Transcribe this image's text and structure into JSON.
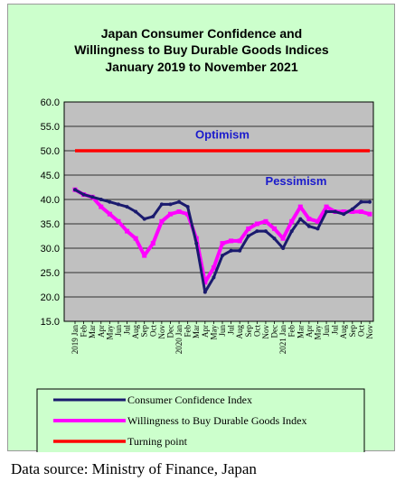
{
  "chart_data": {
    "type": "line",
    "title": [
      "Japan Consumer Confidence and",
      "Willingness to Buy Durable Goods Indices",
      "January 2019 to November 2021"
    ],
    "xlabel": "",
    "ylabel": "",
    "ylim": [
      15.0,
      60.0
    ],
    "y_ticks": [
      "60.0",
      "55.0",
      "50.0",
      "45.0",
      "40.0",
      "35.0",
      "30.0",
      "25.0",
      "20.0",
      "15.0"
    ],
    "grid": "horizontal",
    "legend_position": "bottom",
    "categories": [
      "2019 Jan",
      "Feb",
      "Mar",
      "Apr",
      "May",
      "Jun",
      "Jul",
      "Aug",
      "Sep",
      "Oct",
      "Nov",
      "Dec",
      "2020 Jan",
      "Feb",
      "Mar",
      "Apr",
      "May",
      "Jun",
      "Jul",
      "Aug",
      "Sep",
      "Oct",
      "Nov",
      "Dec",
      "2021 Jan",
      "Feb",
      "Mar",
      "Apr",
      "May",
      "Jun",
      "Jul",
      "Aug",
      "Sep",
      "Oct",
      "Nov"
    ],
    "series": [
      {
        "name": "Consumer Confidence Index",
        "color": "#1a1a6e",
        "values": [
          42.0,
          41.0,
          40.5,
          40.0,
          39.5,
          39.0,
          38.5,
          37.5,
          36.0,
          36.5,
          39.0,
          39.0,
          39.5,
          38.5,
          31.0,
          21.0,
          24.0,
          28.5,
          29.5,
          29.5,
          32.5,
          33.5,
          33.5,
          32.0,
          30.0,
          33.5,
          36.0,
          34.5,
          34.0,
          37.5,
          37.5,
          37.0,
          38.0,
          39.5,
          39.5
        ]
      },
      {
        "name": "Willingness to Buy Durable Goods Index",
        "color": "#ff00ff",
        "values": [
          42.0,
          41.0,
          40.5,
          38.5,
          37.0,
          35.5,
          33.5,
          32.0,
          28.5,
          31.0,
          35.5,
          37.0,
          37.5,
          37.0,
          32.0,
          23.0,
          26.0,
          31.0,
          31.5,
          31.5,
          34.0,
          35.0,
          35.5,
          34.0,
          32.0,
          35.5,
          38.5,
          36.0,
          35.5,
          38.5,
          37.5,
          37.5,
          37.5,
          37.5,
          37.0
        ]
      },
      {
        "name": "Turning point",
        "color": "#ff0000",
        "values": [
          50.0,
          50.0,
          50.0,
          50.0,
          50.0,
          50.0,
          50.0,
          50.0,
          50.0,
          50.0,
          50.0,
          50.0,
          50.0,
          50.0,
          50.0,
          50.0,
          50.0,
          50.0,
          50.0,
          50.0,
          50.0,
          50.0,
          50.0,
          50.0,
          50.0,
          50.0,
          50.0,
          50.0,
          50.0,
          50.0,
          50.0,
          50.0,
          50.0,
          50.0,
          50.0
        ]
      }
    ],
    "annotations": [
      {
        "text": "Optimism",
        "x_index": 17,
        "y": 52.5
      },
      {
        "text": "Pessimism",
        "x_index": 25.5,
        "y": 43.0
      }
    ]
  },
  "source_note": "Data source: Ministry of Finance, Japan",
  "colors": {
    "background": "#ccffcc",
    "plot_area": "#c0c0c0",
    "annotation_text": "#1a1acc"
  }
}
